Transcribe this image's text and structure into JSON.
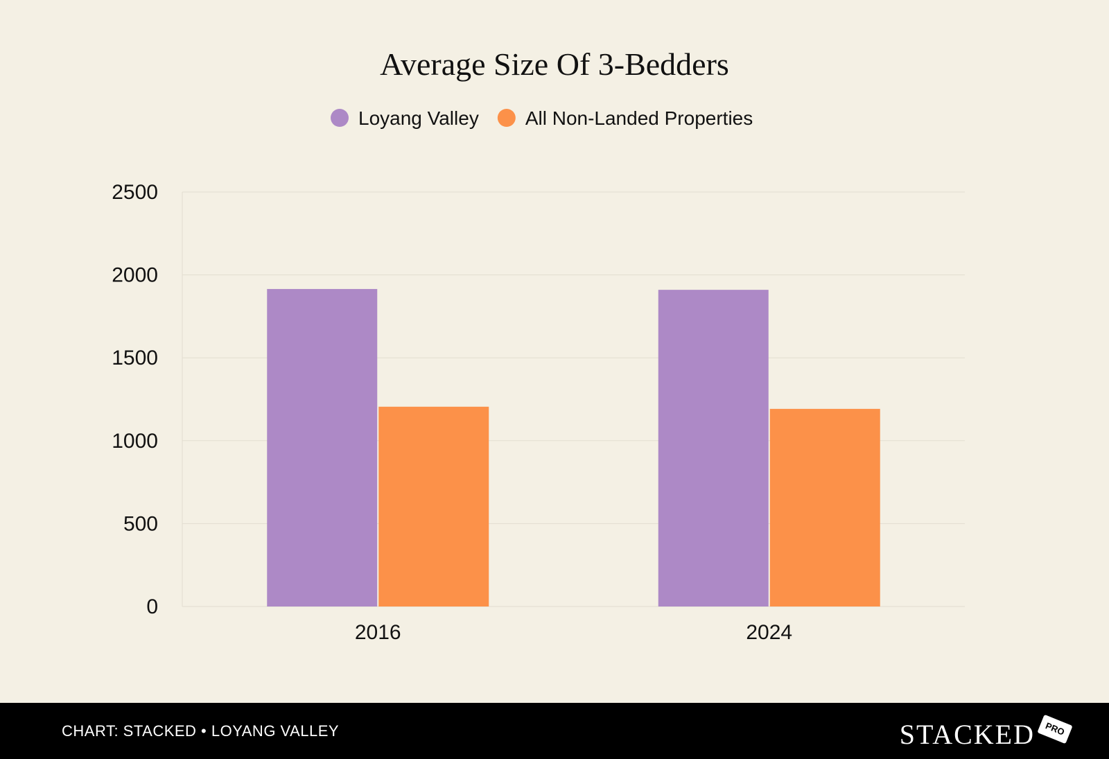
{
  "chart_data": {
    "type": "bar",
    "title": "Average Size Of 3-Bedders",
    "categories": [
      "2016",
      "2024"
    ],
    "series": [
      {
        "name": "Loyang Valley",
        "color": "#ad89c6",
        "values": [
          1915,
          1910
        ]
      },
      {
        "name": "All Non-Landed Properties",
        "color": "#fc9149",
        "values": [
          1205,
          1192
        ]
      }
    ],
    "yticks": [
      "0",
      "500",
      "1000",
      "1500",
      "2000",
      "2500"
    ],
    "ylim": [
      0,
      2500
    ],
    "grid": true,
    "legend": "top-center",
    "xlabel": "",
    "ylabel": ""
  },
  "footer": {
    "caption": "CHART: STACKED • LOYANG VALLEY",
    "brand": "STACKED",
    "brand_tag": "PRO"
  }
}
